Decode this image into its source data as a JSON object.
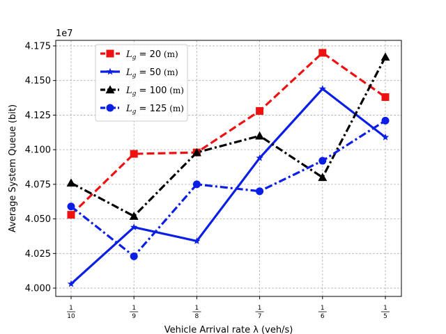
{
  "chart_data": {
    "type": "line",
    "xlabel": "Vehicle Arrival rate λ (veh/s)",
    "ylabel": "Average System Queue (bit)",
    "y_multiplier_label": "1e7",
    "x": [
      0.1,
      0.111111,
      0.125,
      0.142857,
      0.166667,
      0.2
    ],
    "x_tick_labels": [
      {
        "num": "1",
        "den": "10"
      },
      {
        "num": "1",
        "den": "9"
      },
      {
        "num": "1",
        "den": "8"
      },
      {
        "num": "1",
        "den": "7"
      },
      {
        "num": "1",
        "den": "6"
      },
      {
        "num": "1",
        "den": "5"
      }
    ],
    "y_ticks": [
      4.0,
      4.025,
      4.05,
      4.075,
      4.1,
      4.125,
      4.15,
      4.175
    ],
    "y_tick_labels": [
      "4.000",
      "4.025",
      "4.050",
      "4.075",
      "4.100",
      "4.125",
      "4.150",
      "4.175"
    ],
    "ylim": [
      3.994,
      4.179
    ],
    "grid": true,
    "legend_position": "top-left",
    "series": [
      {
        "name": "L_g = 20 (m)",
        "label_main": "L",
        "label_sub": "g",
        "label_value": " = 20",
        "label_unit": " (m)",
        "color": "#ee1111",
        "dash": "dashed",
        "marker": "square",
        "values": [
          4.053,
          4.097,
          4.098,
          4.128,
          4.17,
          4.138
        ]
      },
      {
        "name": "L_g = 50 (m)",
        "label_main": "L",
        "label_sub": "g",
        "label_value": " = 50",
        "label_unit": " (m)",
        "color": "#0a1ee6",
        "dash": "solid",
        "marker": "star",
        "values": [
          4.003,
          4.044,
          4.034,
          4.094,
          4.144,
          4.109
        ]
      },
      {
        "name": "L_g = 100 (m)",
        "label_main": "L",
        "label_sub": "g",
        "label_value": " = 100",
        "label_unit": " (m)",
        "color": "#000000",
        "dash": "dashdot",
        "marker": "triangle",
        "values": [
          4.076,
          4.052,
          4.098,
          4.11,
          4.08,
          4.167
        ]
      },
      {
        "name": "L_g = 125 (m)",
        "label_main": "L",
        "label_sub": "g",
        "label_value": " = 125",
        "label_unit": " (m)",
        "color": "#0a1ee6",
        "dash": "dashdot",
        "marker": "circle",
        "values": [
          4.059,
          4.023,
          4.075,
          4.07,
          4.092,
          4.121
        ]
      }
    ]
  }
}
